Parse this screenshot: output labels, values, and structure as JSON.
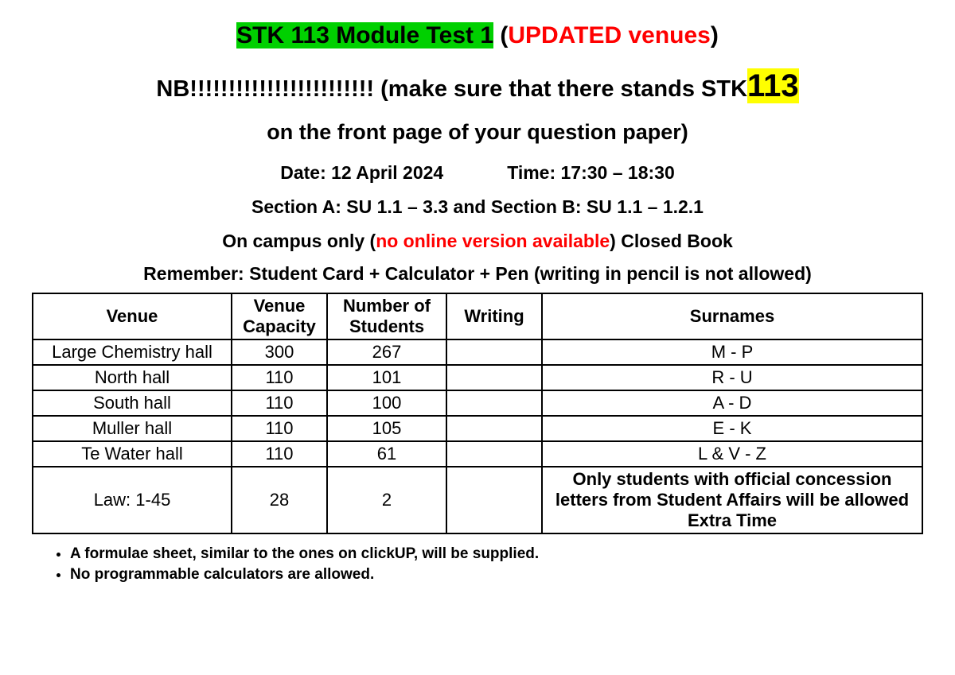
{
  "header": {
    "title_part": "STK 113 Module Test 1",
    "updated_prefix": " (",
    "updated_text": "UPDATED venues",
    "updated_suffix": ")",
    "nb_lead": "NB!!!!!!!!!!!!!!!!!!!!!!!! (make sure that there stands STK",
    "nb_big": "113",
    "nb_tail": "on the front page of your question paper)",
    "date_label": "Date: 12 April 2024",
    "time_label": "Time: 17:30 – 18:30",
    "sections": "Section A:  SU 1.1 – 3.3 and Section B:  SU 1.1 – 1.2.1",
    "campus_lead": "On campus only (",
    "campus_red": "no online version available",
    "campus_tail": ") Closed Book",
    "remember": "Remember: Student Card + Calculator + Pen (writing in pencil is not allowed)"
  },
  "table": {
    "columns": [
      "Venue",
      "Venue Capacity",
      "Number of Students",
      "Writing",
      "Surnames"
    ],
    "rows": [
      {
        "venue": "Large Chemistry hall",
        "capacity": "300",
        "students": "267",
        "writing": "",
        "surnames": "M - P"
      },
      {
        "venue": "North hall",
        "capacity": "110",
        "students": "101",
        "writing": "",
        "surnames": "R - U"
      },
      {
        "venue": "South hall",
        "capacity": "110",
        "students": "100",
        "writing": "",
        "surnames": "A - D"
      },
      {
        "venue": "Muller hall",
        "capacity": "110",
        "students": "105",
        "writing": "",
        "surnames": "E - K"
      },
      {
        "venue": "Te Water hall",
        "capacity": "110",
        "students": "61",
        "writing": "",
        "surnames": "L & V - Z"
      },
      {
        "venue": "Law: 1-45",
        "capacity": "28",
        "students": "2",
        "writing": "",
        "surnames": "Only students with official concession letters from Student Affairs will be allowed Extra Time",
        "bold": true
      }
    ]
  },
  "notes": [
    "A formulae sheet, similar to the ones on clickUP, will be supplied.",
    "No programmable calculators are allowed."
  ],
  "colors": {
    "green_highlight": "#00d000",
    "yellow_highlight": "#ffff00",
    "red_text": "#ff0000",
    "background": "#ffffff",
    "text": "#000000",
    "border": "#000000"
  }
}
